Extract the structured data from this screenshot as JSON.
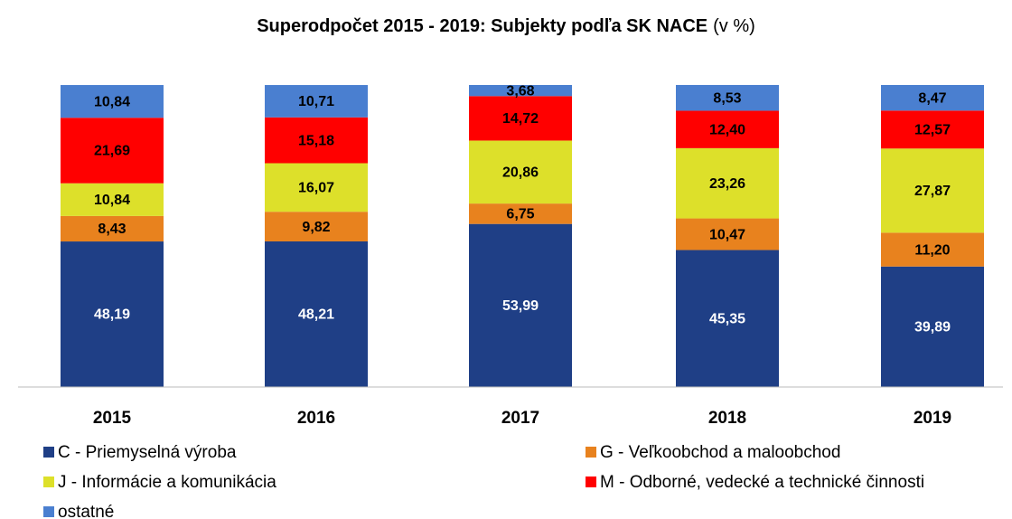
{
  "chart_data": {
    "type": "stacked_bar",
    "title": "Superodpočet 2015 - 2019: Subjekty podľa SK NACE",
    "subtitle": "(v %)",
    "categories": [
      "2015",
      "2016",
      "2017",
      "2018",
      "2019"
    ],
    "ylim": [
      0,
      100
    ],
    "series": [
      {
        "name": "C - Priemyselná výroba",
        "color": "#1f3f86",
        "values": [
          48.19,
          48.21,
          53.99,
          45.35,
          39.89
        ],
        "value_labels": [
          "48,19",
          "48,21",
          "53,99",
          "45,35",
          "39,89"
        ]
      },
      {
        "name": "G - Veľkoobchod a maloobchod",
        "color": "#e8821e",
        "values": [
          8.43,
          9.82,
          6.75,
          10.47,
          11.2
        ],
        "value_labels": [
          "8,43",
          "9,82",
          "6,75",
          "10,47",
          "11,20"
        ]
      },
      {
        "name": "J - Informácie a komunikácia",
        "color": "#dde02a",
        "values": [
          10.84,
          16.07,
          20.86,
          23.26,
          27.87
        ],
        "value_labels": [
          "10,84",
          "16,07",
          "20,86",
          "23,26",
          "27,87"
        ]
      },
      {
        "name": "M - Odborné, vedecké a technické činnosti",
        "color": "#ff0000",
        "values": [
          21.69,
          15.18,
          14.72,
          12.4,
          12.57
        ],
        "value_labels": [
          "21,69",
          "15,18",
          "14,72",
          "12,40",
          "12,57"
        ]
      },
      {
        "name": "ostatné",
        "color": "#4a7fd0",
        "values": [
          10.84,
          10.71,
          3.68,
          8.53,
          8.47
        ],
        "value_labels": [
          "10,84",
          "10,71",
          "3,68",
          "8,53",
          "8,47"
        ]
      }
    ]
  }
}
